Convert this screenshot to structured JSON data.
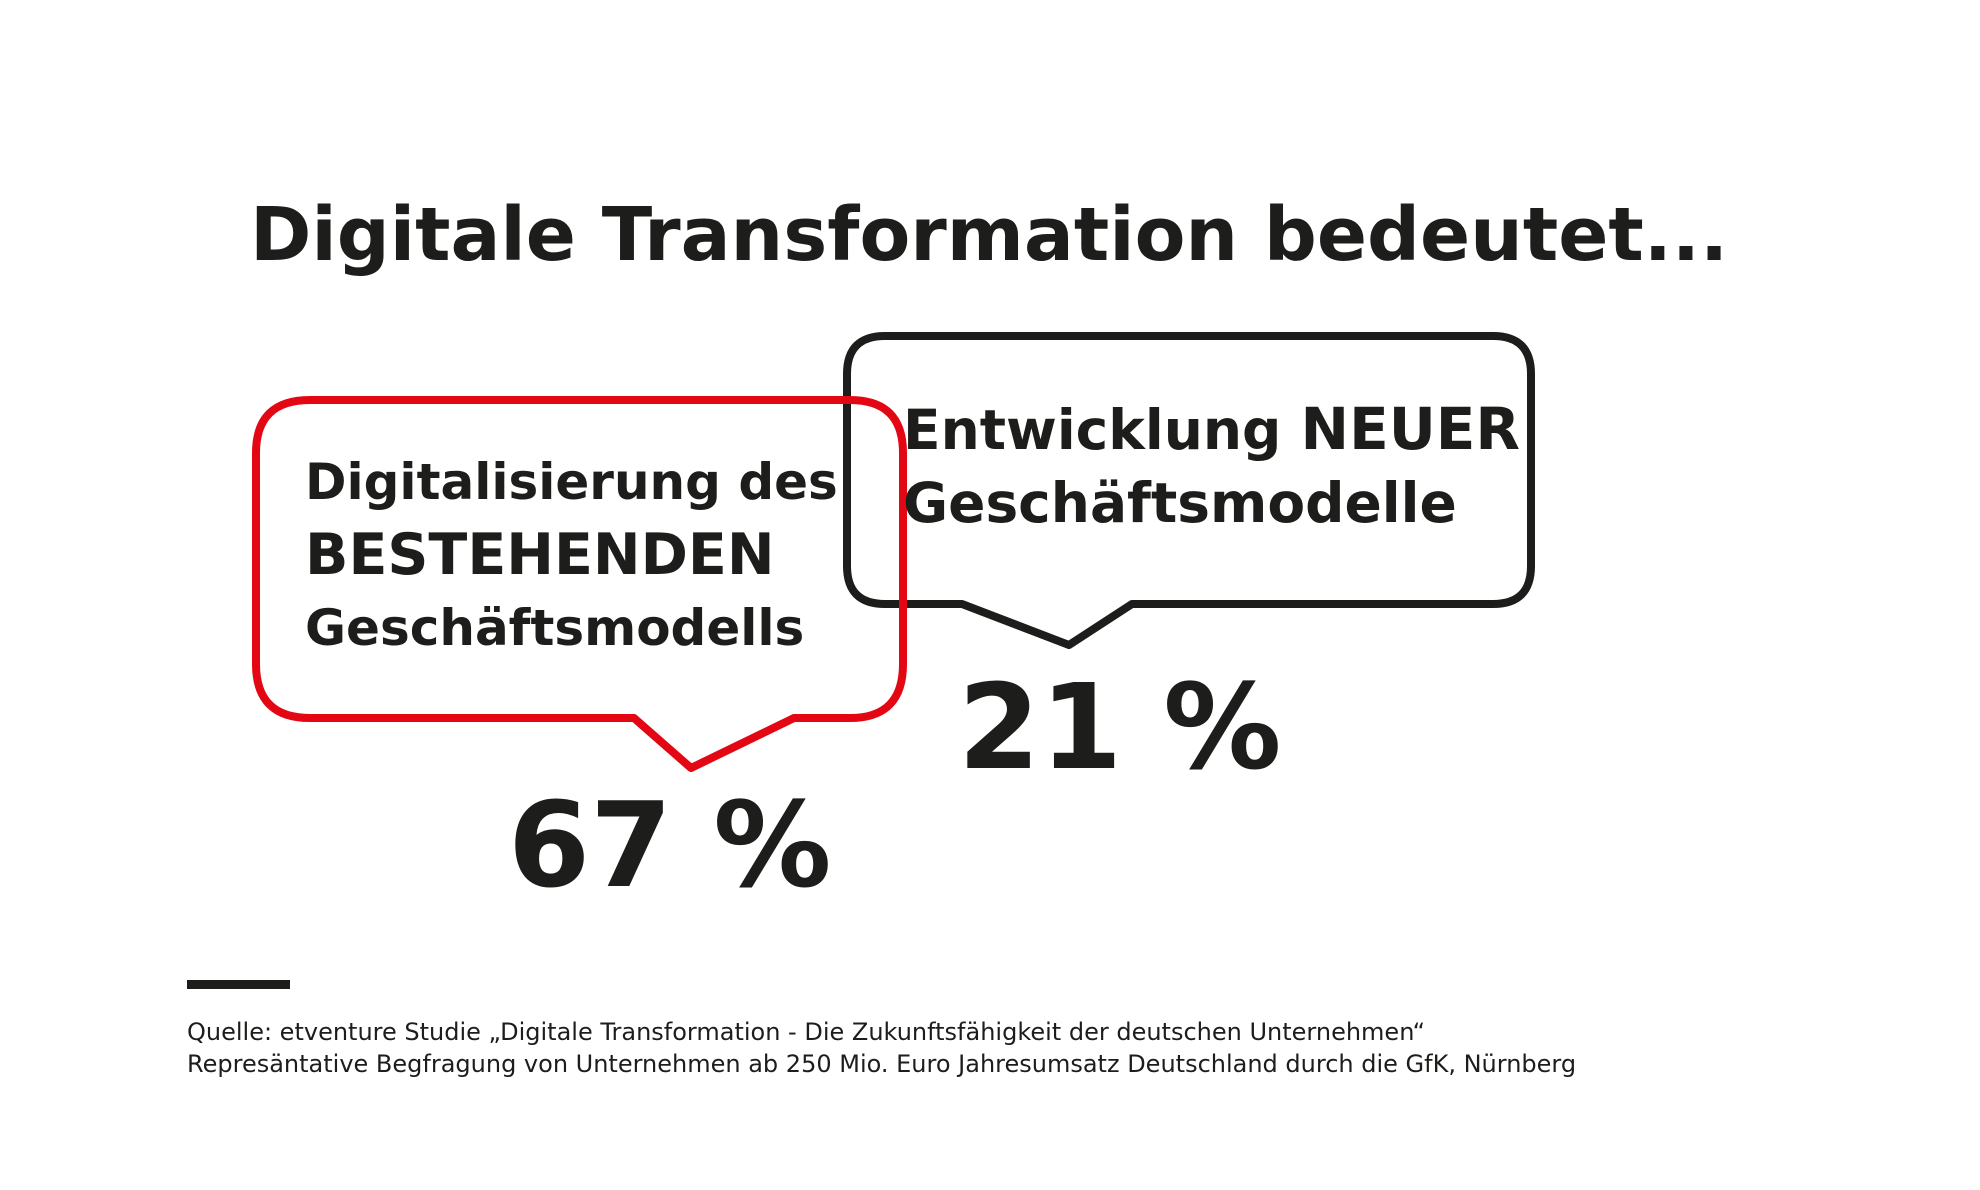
{
  "title": "Digitale Transformation bedeutet...",
  "colors": {
    "accent": "#e30613",
    "dark": "#1d1d1b",
    "background": "#ffffff"
  },
  "chart_data": {
    "type": "bar",
    "categories": [
      "Digitalisierung des BESTEHENDEN Geschäftsmodells",
      "Entwicklung NEUER Geschäftsmodelle"
    ],
    "values": [
      67,
      21
    ],
    "unit": "%"
  },
  "bubbles": {
    "existing": {
      "line1": "Digitalisierung des",
      "line2": "BESTEHENDEN",
      "line3": "Geschäftsmodells",
      "value_label": "67 %"
    },
    "new": {
      "line1_prefix": "Entwicklung ",
      "line1_emph": "NEUER",
      "line2": "Geschäftsmodelle",
      "value_label": "21 %"
    }
  },
  "source": {
    "line1": "Quelle: etventure Studie „Digitale Transformation - Die Zukunftsfähigkeit der deutschen Unternehmen“",
    "line2": "Represäntative Begfragung von Unternehmen ab 250 Mio. Euro Jahresumsatz Deutschland durch die GfK, Nürnberg"
  }
}
